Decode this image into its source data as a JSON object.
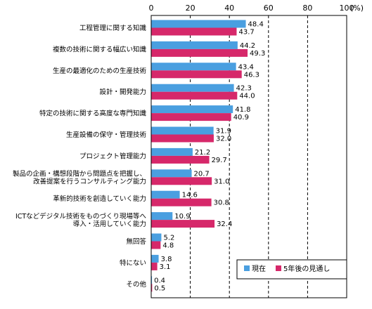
{
  "chart_data": {
    "type": "bar",
    "orientation": "horizontal",
    "unit_label": "(%)",
    "xlim": [
      0,
      100
    ],
    "x_ticks": [
      "0",
      "20",
      "40",
      "60",
      "80",
      "100"
    ],
    "gridlines": "dashed vertical at 20, 40, 60, 80",
    "legend_position": "bottom-right",
    "categories": [
      [
        "工程管理に関する知識"
      ],
      [
        "複数の技術に関する幅広い知識"
      ],
      [
        "生産の最適化のための生産技術"
      ],
      [
        "設計・開発能力"
      ],
      [
        "特定の技術に関する高度な専門知識"
      ],
      [
        "生産設備の保守・管理技術"
      ],
      [
        "プロジェクト管理能力"
      ],
      [
        "製品の企画・構想段階から問題点を把握し、",
        "改善提案を行うコンサルティング能力"
      ],
      [
        "革新的技術を創造していく能力"
      ],
      [
        "ICTなどデジタル技術をものづくり現場等へ",
        "導入・活用していく能力"
      ],
      [
        "無回答"
      ],
      [
        "特にない"
      ],
      [
        "その他"
      ]
    ],
    "series": [
      {
        "name": "現在",
        "color": "#4a9fe0",
        "values": [
          48.4,
          44.2,
          43.4,
          42.3,
          41.8,
          31.9,
          21.2,
          20.7,
          14.6,
          10.9,
          5.2,
          3.8,
          0.4
        ],
        "labels": [
          "48.4",
          "44.2",
          "43.4",
          "42.3",
          "41.8",
          "31.9",
          "21.2",
          "20.7",
          "14.6",
          "10.9",
          "5.2",
          "3.8",
          "0.4"
        ]
      },
      {
        "name": "5年後の見通し",
        "color": "#d6286a",
        "values": [
          43.7,
          49.3,
          46.3,
          44.0,
          40.9,
          32.0,
          29.7,
          31.0,
          30.8,
          32.4,
          4.8,
          3.1,
          0.5
        ],
        "labels": [
          "43.7",
          "49.3",
          "46.3",
          "44.0",
          "40.9",
          "32.0",
          "29.7",
          "31.0",
          "30.8",
          "32.4",
          "4.8",
          "3.1",
          "0.5"
        ]
      }
    ]
  }
}
